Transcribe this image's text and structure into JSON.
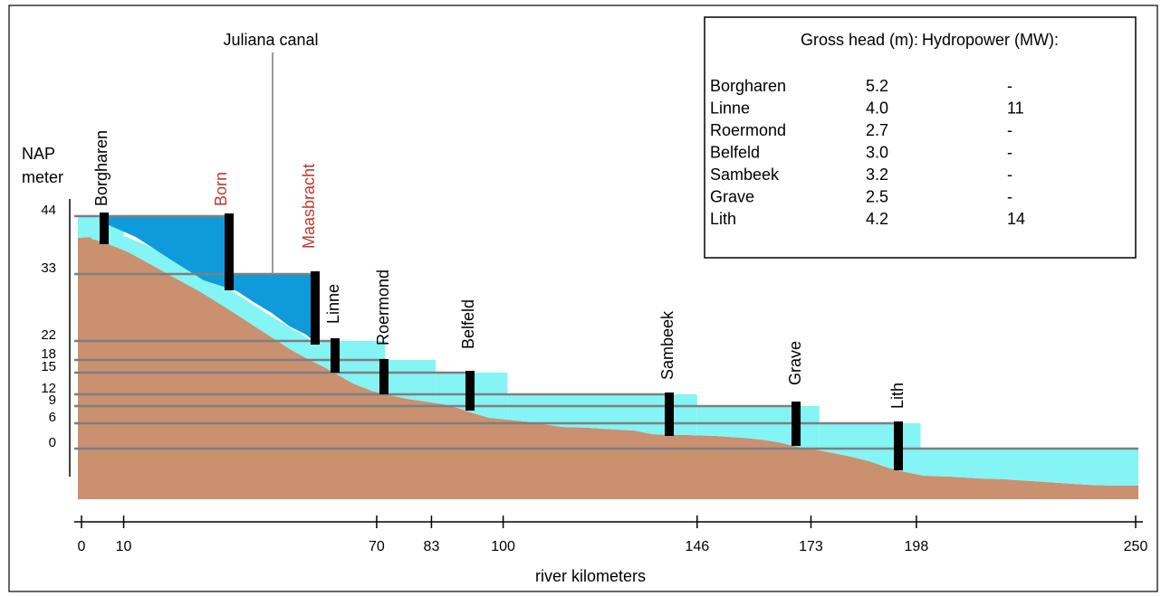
{
  "header": {
    "y_axis_label_line1": "NAP",
    "y_axis_label_line2": "meter",
    "x_axis_label": "river kilometers",
    "canal_label": "Juliana canal"
  },
  "levels": [
    {
      "label": "44",
      "value": 44
    },
    {
      "label": "33",
      "value": 33
    },
    {
      "label": "22",
      "value": 22
    },
    {
      "label": "18",
      "value": 18
    },
    {
      "label": "15",
      "value": 15
    },
    {
      "label": "12",
      "value": 12
    },
    {
      "label": "9",
      "value": 9
    },
    {
      "label": "6",
      "value": 6
    },
    {
      "label": "0",
      "value": 0
    }
  ],
  "x_ticks": [
    {
      "label": "0",
      "km": 0
    },
    {
      "label": "10",
      "km": 10
    },
    {
      "label": "70",
      "km": 70
    },
    {
      "label": "83",
      "km": 83
    },
    {
      "label": "100",
      "km": 100
    },
    {
      "label": "146",
      "km": 146
    },
    {
      "label": "173",
      "km": 173
    },
    {
      "label": "198",
      "km": 198
    },
    {
      "label": "250",
      "km": 250
    }
  ],
  "locks": [
    {
      "name": "Borgharen",
      "km": 10,
      "upstream_level": 44,
      "highlight": false
    },
    {
      "name": "Born",
      "km": 38,
      "upstream_level": 44,
      "highlight": true
    },
    {
      "name": "Maasbracht",
      "km": 67,
      "upstream_level": 33,
      "highlight": true
    },
    {
      "name": "Linne",
      "km": 72,
      "upstream_level": 22,
      "highlight": false
    },
    {
      "name": "Roermond",
      "km": 84,
      "upstream_level": 18,
      "highlight": false
    },
    {
      "name": "Belfeld",
      "km": 101,
      "upstream_level": 15,
      "highlight": false
    },
    {
      "name": "Sambeek",
      "km": 146,
      "upstream_level": 12,
      "highlight": false
    },
    {
      "name": "Grave",
      "km": 175,
      "upstream_level": 9,
      "highlight": false
    },
    {
      "name": "Lith",
      "km": 199,
      "upstream_level": 6,
      "highlight": false
    }
  ],
  "legend": {
    "header_head": "Gross head (m):",
    "header_power": "Hydropower (MW):",
    "rows": [
      {
        "name": "Borgharen",
        "head": "5.2",
        "power": "-"
      },
      {
        "name": "Linne",
        "head": "4.0",
        "power": "11"
      },
      {
        "name": "Roermond",
        "head": "2.7",
        "power": "-"
      },
      {
        "name": "Belfeld",
        "head": "3.0",
        "power": "-"
      },
      {
        "name": "Sambeek",
        "head": "3.2",
        "power": "-"
      },
      {
        "name": "Grave",
        "head": "2.5",
        "power": "-"
      },
      {
        "name": "Lith",
        "head": "4.2",
        "power": "14"
      }
    ]
  },
  "colors": {
    "riverbed": "#c99170",
    "river_water": "#84f4f4",
    "canal_water": "#0f9bdb",
    "canal_water_light": "#48b5e3",
    "level_line": "#7f7f7f",
    "lock": "#000000",
    "highlight_text": "#c0392b",
    "text": "#000000"
  }
}
